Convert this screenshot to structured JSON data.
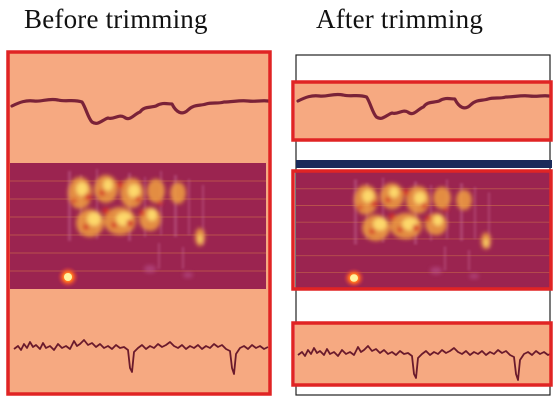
{
  "labels": {
    "before": "Before trimming",
    "after": "After trimming"
  },
  "colors": {
    "panel_fill": "#f6a981",
    "highlight_border": "#e02424",
    "spectrogram_bg": "#9b2450",
    "divider_bar": "#1a2a5a",
    "trace": "#7a2238",
    "page_bg": "#ffffff"
  },
  "panels": [
    {
      "name": "before",
      "sections": [
        "trace",
        "spectrogram",
        "trace"
      ],
      "trimmed": false
    },
    {
      "name": "after",
      "sections": [
        "trace",
        "spectrogram",
        "trace"
      ],
      "trimmed": true
    }
  ]
}
